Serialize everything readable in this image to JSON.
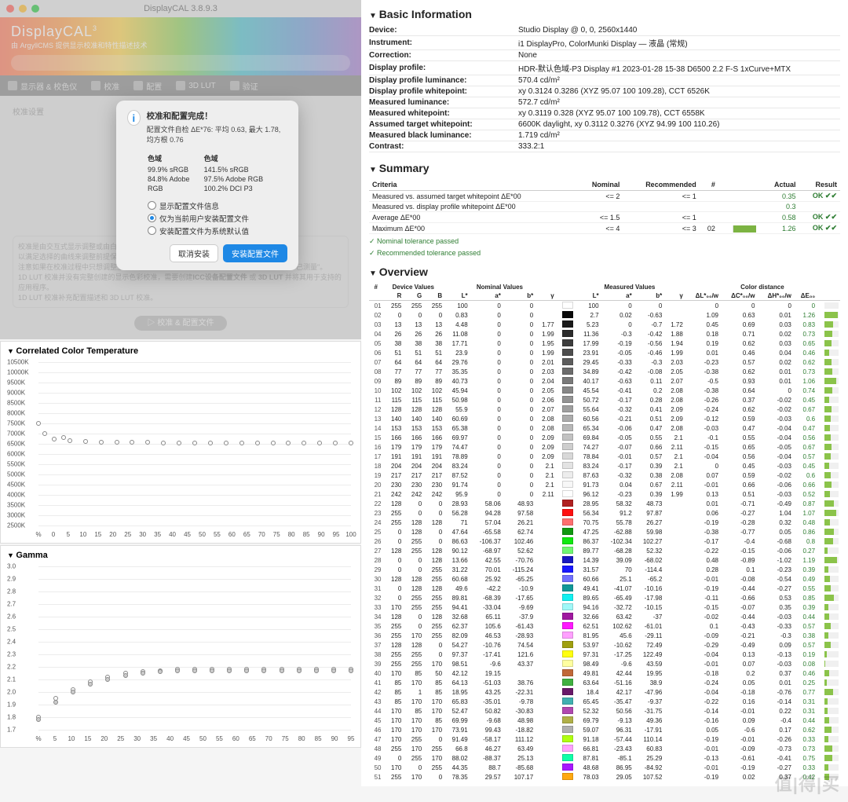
{
  "mac": {
    "title": "DisplayCAL 3.8.9.3",
    "app_name": "DisplayCAL",
    "app_sup": "3",
    "app_sub": "由 ArgyllCMS 提供显示校准和特性描述技术",
    "toolbar": [
      "显示器 & 校色仪",
      "校准",
      "配置",
      "3D LUT",
      "验证"
    ]
  },
  "dialog": {
    "title": "校准和配置完成！",
    "sub": "配置文件自检  ΔE*76: 平均 0.63, 最大 1.78, 均方根 0.76",
    "col1_h": "色域",
    "col2_h": "色域",
    "col1": [
      "99.9% sRGB",
      "84.8% Adobe",
      "RGB"
    ],
    "col2": [
      "141.5% sRGB",
      "97.5% Adobe RGB",
      "100.2% DCI P3"
    ],
    "opt1": "显示配置文件信息",
    "opt2": "仅为当前用户安装配置文件",
    "opt3": "安装配置文件为系统默认值",
    "btn_cancel": "取消安装",
    "btn_ok": "安装配置文件"
  },
  "cct_chart": {
    "title": "Correlated Color Temperature",
    "ylabels": [
      "10500K",
      "10000K",
      "9500K",
      "9000K",
      "8500K",
      "8000K",
      "7500K",
      "7000K",
      "6500K",
      "6000K",
      "5500K",
      "5000K",
      "4500K",
      "4000K",
      "3500K",
      "3000K",
      "2500K"
    ],
    "xlabels": [
      "%",
      "0",
      "5",
      "10",
      "15",
      "20",
      "25",
      "30",
      "35",
      "40",
      "45",
      "50",
      "55",
      "60",
      "65",
      "70",
      "75",
      "80",
      "85",
      "90",
      "95",
      "100"
    ],
    "points": [
      [
        0,
        7500
      ],
      [
        2,
        7000
      ],
      [
        5,
        6750
      ],
      [
        8,
        6800
      ],
      [
        10,
        6650
      ],
      [
        15,
        6600
      ],
      [
        20,
        6580
      ],
      [
        25,
        6570
      ],
      [
        30,
        6560
      ],
      [
        35,
        6560
      ],
      [
        40,
        6555
      ],
      [
        45,
        6550
      ],
      [
        50,
        6550
      ],
      [
        55,
        6545
      ],
      [
        60,
        6545
      ],
      [
        65,
        6540
      ],
      [
        70,
        6540
      ],
      [
        75,
        6540
      ],
      [
        80,
        6535
      ],
      [
        85,
        6530
      ],
      [
        90,
        6530
      ],
      [
        95,
        6528
      ],
      [
        100,
        6526
      ]
    ],
    "ymin": 2500,
    "ymax": 10500
  },
  "gamma_chart": {
    "title": "Gamma",
    "ylabels": [
      "3.0",
      "2.9",
      "2.8",
      "2.7",
      "2.6",
      "2.5",
      "2.4",
      "2.3",
      "2.2",
      "2.1",
      "2.0",
      "1.9",
      "1.8",
      "1.7"
    ],
    "xlabels": [
      "%",
      "5",
      "10",
      "15",
      "20",
      "25",
      "30",
      "35",
      "40",
      "45",
      "50",
      "55",
      "60",
      "65",
      "70",
      "75",
      "80",
      "85",
      "90",
      "95"
    ],
    "pointsA": [
      [
        5,
        1.8
      ],
      [
        10,
        1.95
      ],
      [
        15,
        2.02
      ],
      [
        20,
        2.08
      ],
      [
        25,
        2.12
      ],
      [
        30,
        2.15
      ],
      [
        35,
        2.16
      ],
      [
        40,
        2.17
      ],
      [
        45,
        2.18
      ],
      [
        50,
        2.18
      ],
      [
        55,
        2.18
      ],
      [
        60,
        2.18
      ],
      [
        65,
        2.18
      ],
      [
        70,
        2.18
      ],
      [
        75,
        2.18
      ],
      [
        80,
        2.18
      ],
      [
        85,
        2.18
      ],
      [
        90,
        2.18
      ],
      [
        95,
        2.18
      ]
    ],
    "pointsB": [
      [
        5,
        1.78
      ],
      [
        10,
        1.92
      ],
      [
        15,
        2.0
      ],
      [
        20,
        2.06
      ],
      [
        25,
        2.1
      ],
      [
        30,
        2.13
      ],
      [
        35,
        2.15
      ],
      [
        40,
        2.16
      ],
      [
        45,
        2.17
      ],
      [
        50,
        2.17
      ],
      [
        55,
        2.17
      ],
      [
        60,
        2.17
      ],
      [
        65,
        2.17
      ],
      [
        70,
        2.17
      ],
      [
        75,
        2.17
      ],
      [
        80,
        2.17
      ],
      [
        85,
        2.17
      ],
      [
        90,
        2.17
      ],
      [
        95,
        2.17
      ]
    ],
    "ymin": 1.7,
    "ymax": 3.0
  },
  "info": {
    "heading": "Basic Information",
    "rows": [
      [
        "Device:",
        "Studio Display @ 0, 0, 2560x1440"
      ],
      [
        "Instrument:",
        "i1 DisplayPro, ColorMunki Display — 液晶 (常规)"
      ],
      [
        "Correction:",
        "None"
      ],
      [
        "Display profile:",
        "HDR-默认色域-P3 Display #1 2023-01-28 15-38 D6500 2.2 F-S 1xCurve+MTX"
      ],
      [
        "Display profile luminance:",
        "570.4 cd/m²"
      ],
      [
        "Display profile whitepoint:",
        "xy 0.3124 0.3286 (XYZ 95.07 100 109.28), CCT 6526K"
      ],
      [
        "Measured luminance:",
        "572.7 cd/m²"
      ],
      [
        "Measured whitepoint:",
        "xy 0.3119 0.328 (XYZ 95.07 100 109.78), CCT 6558K"
      ],
      [
        "Assumed target whitepoint:",
        "6600K daylight, xy 0.3112 0.3276 (XYZ 94.99 100 110.26)"
      ],
      [
        "Measured black luminance:",
        "1.719 cd/m²"
      ],
      [
        "Contrast:",
        "333.2:1"
      ]
    ]
  },
  "summary": {
    "heading": "Summary",
    "headers": [
      "Criteria",
      "Nominal",
      "Recommended",
      "#",
      "",
      "Actual",
      "Result"
    ],
    "rows": [
      [
        "Measured vs. assumed target whitepoint ΔE*00",
        "<= 2",
        "<= 1",
        "",
        "",
        "0.35",
        "OK ✔✔"
      ],
      [
        "Measured vs. display profile whitepoint ΔE*00",
        "",
        "",
        "",
        "",
        "0.3",
        ""
      ],
      [
        "Average ΔE*00",
        "<= 1.5",
        "<= 1",
        "",
        "",
        "0.58",
        "OK ✔✔"
      ],
      [
        "Maximum ΔE*00",
        "<= 4",
        "<= 3",
        "02",
        "1.26",
        "1.26",
        "OK ✔✔"
      ]
    ],
    "pass1": "Nominal tolerance passed",
    "pass2": "Recommended tolerance passed"
  },
  "overview": {
    "heading": "Overview",
    "group_headers": [
      "#",
      "Device Values",
      "Nominal Values",
      "",
      "",
      "Measured Values",
      "Color distance"
    ],
    "headers": [
      "",
      "R",
      "G",
      "B",
      "L*",
      "a*",
      "b*",
      "γ",
      "",
      "L*",
      "a*",
      "b*",
      "γ",
      "ΔL*₀₀/w",
      "ΔC*₀₀/w",
      "ΔH*₀₀/w",
      "ΔE₀₀",
      ""
    ]
  },
  "overview_rows": [
    [
      "01",
      255,
      255,
      255,
      100,
      0,
      0,
      "",
      "#ffffff",
      100,
      0,
      0,
      "",
      "0",
      "0",
      "0",
      "0"
    ],
    [
      "02",
      0,
      0,
      0,
      0.83,
      0,
      0,
      "",
      "#0a0a0a",
      2.7,
      0.02,
      -0.63,
      "",
      "1.09",
      "0.63",
      "0.01",
      "1.26"
    ],
    [
      "03",
      13,
      13,
      13,
      4.48,
      0,
      0,
      1.77,
      "#1a1a1a",
      5.23,
      0,
      -0.7,
      1.72,
      "0.45",
      "0.69",
      "0.03",
      "0.83"
    ],
    [
      "04",
      26,
      26,
      26,
      11.08,
      0,
      0,
      1.99,
      "#2c2c2c",
      11.36,
      -0.3,
      -0.42,
      1.88,
      "0.18",
      "0.71",
      "0.02",
      "0.73"
    ],
    [
      "05",
      38,
      38,
      38,
      17.71,
      0,
      0,
      1.95,
      "#3c3c3c",
      17.99,
      -0.19,
      -0.56,
      1.94,
      "0.19",
      "0.62",
      "0.03",
      "0.65"
    ],
    [
      "06",
      51,
      51,
      51,
      23.9,
      0,
      0,
      1.99,
      "#4d4d4d",
      23.91,
      -0.05,
      -0.46,
      1.99,
      "0.01",
      "0.46",
      "0.04",
      "0.46"
    ],
    [
      "07",
      64,
      64,
      64,
      29.76,
      0,
      0,
      2.01,
      "#5c5c5c",
      29.45,
      -0.33,
      -0.3,
      2.03,
      "-0.23",
      "0.57",
      "0.02",
      "0.62"
    ],
    [
      "08",
      77,
      77,
      77,
      35.35,
      0,
      0,
      2.03,
      "#6b6b6b",
      34.89,
      -0.42,
      -0.08,
      2.05,
      "-0.38",
      "0.62",
      "0.01",
      "0.73"
    ],
    [
      "09",
      89,
      89,
      89,
      40.73,
      0,
      0,
      2.04,
      "#797979",
      40.17,
      -0.63,
      0.11,
      2.07,
      "-0.5",
      "0.93",
      "0.01",
      "1.06"
    ],
    [
      "10",
      102,
      102,
      102,
      45.94,
      0,
      0,
      2.05,
      "#868686",
      45.54,
      -0.41,
      0.2,
      2.08,
      "-0.38",
      "0.64",
      "0",
      "0.74"
    ],
    [
      "11",
      115,
      115,
      115,
      50.98,
      0,
      0,
      2.06,
      "#939393",
      50.72,
      -0.17,
      0.28,
      2.08,
      "-0.26",
      "0.37",
      "-0.02",
      "0.45"
    ],
    [
      "12",
      128,
      128,
      128,
      55.9,
      0,
      0,
      2.07,
      "#9f9f9f",
      55.64,
      -0.32,
      0.41,
      2.09,
      "-0.24",
      "0.62",
      "-0.02",
      "0.67"
    ],
    [
      "13",
      140,
      140,
      140,
      60.69,
      0,
      0,
      2.08,
      "#ababab",
      60.56,
      -0.21,
      0.51,
      2.09,
      "-0.12",
      "0.59",
      "-0.03",
      "0.6"
    ],
    [
      "14",
      153,
      153,
      153,
      65.38,
      0,
      0,
      2.08,
      "#b7b7b7",
      65.34,
      -0.06,
      0.47,
      2.08,
      "-0.03",
      "0.47",
      "-0.04",
      "0.47"
    ],
    [
      "15",
      166,
      166,
      166,
      69.97,
      0,
      0,
      2.09,
      "#c2c2c2",
      69.84,
      -0.05,
      0.55,
      2.1,
      "-0.1",
      "0.55",
      "-0.04",
      "0.56"
    ],
    [
      "16",
      179,
      179,
      179,
      74.47,
      0,
      0,
      2.09,
      "#cecece",
      74.27,
      -0.07,
      0.66,
      2.11,
      "-0.15",
      "0.65",
      "-0.05",
      "0.67"
    ],
    [
      "17",
      191,
      191,
      191,
      78.89,
      0,
      0,
      2.09,
      "#d8d8d8",
      78.84,
      -0.01,
      0.57,
      2.1,
      "-0.04",
      "0.56",
      "-0.04",
      "0.57"
    ],
    [
      "18",
      204,
      204,
      204,
      83.24,
      0,
      0,
      2.1,
      "#e3e3e3",
      83.24,
      -0.17,
      0.39,
      2.1,
      "0",
      "0.45",
      "-0.03",
      "0.45"
    ],
    [
      "19",
      217,
      217,
      217,
      87.52,
      0,
      0,
      2.1,
      "#ededed",
      87.63,
      -0.32,
      0.38,
      2.08,
      "0.07",
      "0.59",
      "-0.02",
      "0.6"
    ],
    [
      "20",
      230,
      230,
      230,
      91.74,
      0,
      0,
      2.1,
      "#f7f7f7",
      91.73,
      0.04,
      0.67,
      2.11,
      "-0.01",
      "0.66",
      "-0.06",
      "0.66"
    ],
    [
      "21",
      242,
      242,
      242,
      95.9,
      0,
      0,
      2.11,
      "#fefefe",
      96.12,
      -0.23,
      0.39,
      1.99,
      "0.13",
      "0.51",
      "-0.03",
      "0.52"
    ],
    [
      "22",
      128,
      0,
      0,
      28.93,
      58.06,
      48.93,
      "",
      "#b02020",
      28.95,
      58.32,
      48.73,
      "",
      "0.01",
      "-0.71",
      "-0.49",
      "0.87"
    ],
    [
      "23",
      255,
      0,
      0,
      56.28,
      94.28,
      97.58,
      "",
      "#ff1010",
      56.34,
      91.2,
      97.87,
      "",
      "0.06",
      "-0.27",
      "1.04",
      "1.07"
    ],
    [
      "24",
      255,
      128,
      128,
      71,
      57.04,
      26.21,
      "",
      "#ff6f6f",
      70.75,
      55.78,
      26.27,
      "",
      "-0.19",
      "-0.28",
      "0.32",
      "0.48"
    ],
    [
      "25",
      0,
      128,
      0,
      47.64,
      -65.58,
      62.74,
      "",
      "#109810",
      47.25,
      -62.88,
      59.98,
      "",
      "-0.38",
      "-0.77",
      "0.05",
      "0.86"
    ],
    [
      "26",
      0,
      255,
      0,
      86.63,
      -106.37,
      102.46,
      "",
      "#10e810",
      86.37,
      -102.34,
      102.27,
      "",
      "-0.17",
      "-0.4",
      "-0.68",
      "0.8"
    ],
    [
      "27",
      128,
      255,
      128,
      90.12,
      -68.97,
      52.62,
      "",
      "#70f870",
      89.77,
      -68.28,
      52.32,
      "",
      "-0.22",
      "-0.15",
      "-0.06",
      "0.27"
    ],
    [
      "28",
      0,
      0,
      128,
      13.66,
      42.55,
      -70.76,
      "",
      "#1818c0",
      14.39,
      39.09,
      -68.02,
      "",
      "0.48",
      "-0.89",
      "-1.02",
      "1.19"
    ],
    [
      "29",
      0,
      0,
      255,
      31.22,
      70.01,
      -115.24,
      "",
      "#1818ff",
      31.57,
      70,
      -114.4,
      "",
      "0.28",
      "0.1",
      "-0.23",
      "0.39"
    ],
    [
      "30",
      128,
      128,
      255,
      60.68,
      25.92,
      -65.25,
      "",
      "#7070ff",
      60.66,
      25.1,
      -65.2,
      "",
      "-0.01",
      "-0.08",
      "-0.54",
      "0.49"
    ],
    [
      "31",
      0,
      128,
      128,
      49.6,
      -42.2,
      -10.9,
      "",
      "#109898",
      49.41,
      -41.07,
      -10.16,
      "",
      "-0.19",
      "-0.44",
      "-0.27",
      "0.55"
    ],
    [
      "32",
      0,
      255,
      255,
      89.81,
      -68.39,
      -17.65,
      "",
      "#10f0f0",
      89.65,
      -65.49,
      -17.98,
      "",
      "-0.11",
      "-0.66",
      "0.53",
      "0.85"
    ],
    [
      "33",
      170,
      255,
      255,
      94.41,
      -33.04,
      -9.69,
      "",
      "#a0f8f8",
      94.16,
      -32.72,
      -10.15,
      "",
      "-0.15",
      "-0.07",
      "0.35",
      "0.39"
    ],
    [
      "34",
      128,
      0,
      128,
      32.68,
      65.11,
      -37.9,
      "",
      "#a018a0",
      32.66,
      63.42,
      -37,
      "",
      "-0.02",
      "-0.44",
      "-0.03",
      "0.44"
    ],
    [
      "35",
      255,
      0,
      255,
      62.37,
      105.6,
      -61.43,
      "",
      "#ff18ff",
      62.51,
      102.62,
      -61.01,
      "",
      "0.1",
      "-0.43",
      "-0.33",
      "0.57"
    ],
    [
      "36",
      255,
      170,
      255,
      82.09,
      46.53,
      -28.93,
      "",
      "#ffa0ff",
      81.95,
      45.6,
      -29.11,
      "",
      "-0.09",
      "-0.21",
      "-0.3",
      "0.38"
    ],
    [
      "37",
      128,
      128,
      0,
      54.27,
      -10.76,
      74.54,
      "",
      "#a0a010",
      53.97,
      -10.62,
      72.49,
      "",
      "-0.29",
      "-0.49",
      "0.09",
      "0.57"
    ],
    [
      "38",
      255,
      255,
      0,
      97.37,
      -17.41,
      121.6,
      "",
      "#ffff10",
      97.31,
      -17.25,
      122.49,
      "",
      "-0.04",
      "0.13",
      "-0.13",
      "0.19"
    ],
    [
      "39",
      255,
      255,
      170,
      98.51,
      -9.6,
      43.37,
      "",
      "#ffffa0",
      98.49,
      -9.6,
      43.59,
      "",
      "-0.01",
      "0.07",
      "-0.03",
      "0.08"
    ],
    [
      "40",
      170,
      85,
      50,
      42.12,
      19.15,
      "",
      "",
      "#c06838",
      49.81,
      42.44,
      19.95,
      "",
      "-0.18",
      "0.2",
      "0.37",
      "0.46"
    ],
    [
      "41",
      85,
      170,
      85,
      64.13,
      -51.03,
      38.76,
      "",
      "#40b040",
      63.64,
      -51.16,
      38.9,
      "",
      "-0.24",
      "0.05",
      "0.01",
      "0.25"
    ],
    [
      "42",
      85,
      1,
      85,
      18.95,
      43.25,
      -22.31,
      "",
      "#681868",
      18.4,
      42.17,
      -47.96,
      "",
      "-0.04",
      "-0.18",
      "-0.76",
      "0.77"
    ],
    [
      "43",
      85,
      170,
      170,
      65.83,
      -35.01,
      -9.78,
      "",
      "#40b0b0",
      65.45,
      -35.47,
      -9.37,
      "",
      "-0.22",
      "0.16",
      "-0.14",
      "0.31"
    ],
    [
      "44",
      170,
      85,
      170,
      52.47,
      50.82,
      -30.83,
      "",
      "#b048b0",
      52.32,
      50.56,
      -31.75,
      "",
      "-0.14",
      "-0.01",
      "0.22",
      "0.31"
    ],
    [
      "45",
      170,
      170,
      85,
      69.99,
      -9.68,
      48.98,
      "",
      "#b0b048",
      69.79,
      -9.13,
      49.36,
      "",
      "-0.16",
      "0.09",
      "-0.4",
      "0.44"
    ],
    [
      "46",
      170,
      170,
      170,
      73.91,
      99.43,
      -18.82,
      "",
      "#b0b0b0",
      59.07,
      96.31,
      -17.91,
      "",
      "0.05",
      "-0.6",
      "0.17",
      "0.62"
    ],
    [
      "47",
      170,
      255,
      0,
      91.49,
      -58.17,
      111.12,
      "",
      "#b0ff10",
      91.18,
      -57.44,
      110.14,
      "",
      "-0.19",
      "-0.01",
      "-0.26",
      "0.33"
    ],
    [
      "48",
      255,
      170,
      255,
      66.8,
      46.27,
      63.49,
      "",
      "#ffa0ff",
      66.81,
      -23.43,
      60.83,
      "",
      "-0.01",
      "-0.09",
      "-0.73",
      "0.73"
    ],
    [
      "49",
      0,
      255,
      170,
      88.02,
      -88.37,
      25.13,
      "",
      "#10ffa8",
      87.81,
      -85.1,
      25.29,
      "",
      "-0.13",
      "-0.61",
      "-0.41",
      "0.75"
    ],
    [
      "50",
      170,
      0,
      255,
      44.35,
      88.7,
      -85.68,
      "",
      "#a818ff",
      48.68,
      86.95,
      -84.92,
      "",
      "-0.01",
      "-0.19",
      "-0.27",
      "0.33"
    ],
    [
      "51",
      255,
      170,
      0,
      78.35,
      29.57,
      107.17,
      "",
      "#ffa810",
      78.03,
      29.05,
      107.52,
      "",
      "-0.19",
      "0.02",
      "0.37",
      "0.42"
    ]
  ],
  "watermark": "值|得|买"
}
